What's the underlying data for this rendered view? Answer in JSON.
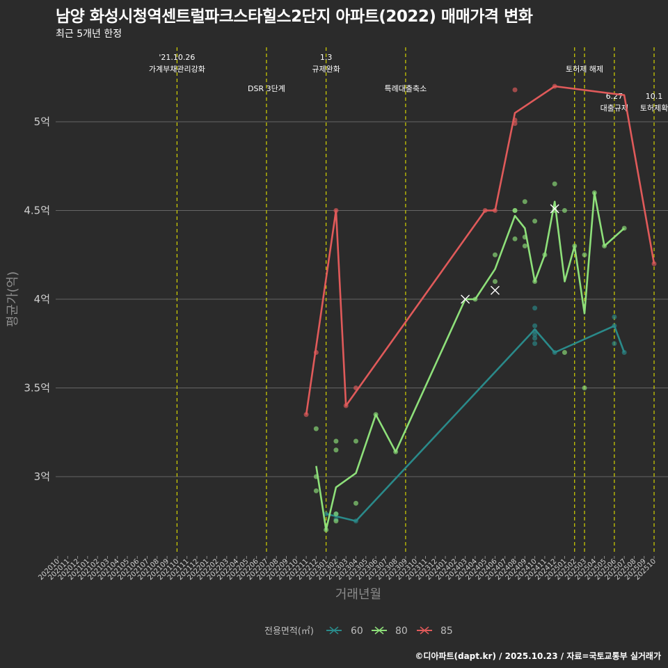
{
  "header": {
    "title": "남양 화성시청역센트럴파크스타힐스2단지 아파트(2022) 매매가격 변화",
    "subtitle": "최근 5개년 한정"
  },
  "footer": {
    "caption": "©디아파트(dapt.kr) / 2025.10.23 / 자료=국토교통부 실거래가"
  },
  "colors": {
    "background": "#2b2b2b",
    "grid": "#666666",
    "event_line": "#d4d400",
    "s60": "#2a8a8a",
    "s80": "#8ee07a",
    "s85": "#e05a5a"
  },
  "chart_data": {
    "type": "line",
    "title": "남양 화성시청역센트럴파크스타힐스2단지 아파트(2022) 매매가격 변화",
    "xlabel": "거래년월",
    "ylabel": "평균가(억)",
    "ylim": [
      2.6,
      5.45
    ],
    "yticks": [
      3,
      3.5,
      4,
      4.5,
      5
    ],
    "ytick_labels": [
      "3억",
      "3.5억",
      "4억",
      "4.5억",
      "5억"
    ],
    "grid": true,
    "x_categories": [
      "202010",
      "202011",
      "202012",
      "202101",
      "202102",
      "202103",
      "202104",
      "202105",
      "202106",
      "202107",
      "202108",
      "202109",
      "202110",
      "202111",
      "202112",
      "202201",
      "202202",
      "202203",
      "202204",
      "202205",
      "202206",
      "202207",
      "202208",
      "202209",
      "202210",
      "202211",
      "202212",
      "202301",
      "202302",
      "202303",
      "202304",
      "202305",
      "202306",
      "202307",
      "202308",
      "202309",
      "202310",
      "202311",
      "202312",
      "202401",
      "202402",
      "202403",
      "202404",
      "202405",
      "202406",
      "202407",
      "202408",
      "202409",
      "202410",
      "202411",
      "202412",
      "202501",
      "202502",
      "202503",
      "202504",
      "202505",
      "202506",
      "202507",
      "202508",
      "202509",
      "202510"
    ],
    "legend": {
      "title": "전용면적(㎡)",
      "placement": "bottom",
      "entries": [
        "60",
        "80",
        "85"
      ]
    },
    "events": [
      {
        "x": "202110",
        "label": "'21.10.26\n가계부채관리강화",
        "row": 0
      },
      {
        "x": "202207",
        "label": "DSR 3단계",
        "row": 2
      },
      {
        "x": "202301",
        "label": "1.3\n규제완화",
        "row": 0
      },
      {
        "x": "202309",
        "label": "특례대출축소",
        "row": 2
      },
      {
        "x": "202502",
        "label": "",
        "row": 0
      },
      {
        "x": "202503",
        "label": "토허제 해제",
        "row": 1
      },
      {
        "x": "202506",
        "label": "6.27\n대출규제",
        "row": 3
      },
      {
        "x": "202510",
        "label": "10.1\n토허제확",
        "row": 3
      }
    ],
    "series": [
      {
        "name": "60",
        "color": "#2a8a8a",
        "line": [
          [
            "202301",
            2.79
          ],
          [
            "202304",
            2.75
          ],
          [
            "202410",
            3.83
          ],
          [
            "202412",
            3.7
          ],
          [
            "202506",
            3.85
          ],
          [
            "202507",
            3.7
          ]
        ],
        "points": [
          [
            "202301",
            2.79
          ],
          [
            "202302",
            2.79
          ],
          [
            "202302",
            2.76
          ],
          [
            "202304",
            2.75
          ],
          [
            "202410",
            3.95
          ],
          [
            "202410",
            3.85
          ],
          [
            "202410",
            3.82
          ],
          [
            "202410",
            3.8
          ],
          [
            "202410",
            3.78
          ],
          [
            "202410",
            3.75
          ],
          [
            "202412",
            3.7
          ],
          [
            "202506",
            3.9
          ],
          [
            "202506",
            3.85
          ],
          [
            "202506",
            3.75
          ],
          [
            "202507",
            3.7
          ]
        ],
        "crosses": []
      },
      {
        "name": "80",
        "color": "#8ee07a",
        "line": [
          [
            "202212",
            3.06
          ],
          [
            "202301",
            2.7
          ],
          [
            "202302",
            2.94
          ],
          [
            "202304",
            3.02
          ],
          [
            "202306",
            3.35
          ],
          [
            "202308",
            3.14
          ],
          [
            "202403",
            4.0
          ],
          [
            "202404",
            4.0
          ],
          [
            "202406",
            4.17
          ],
          [
            "202408",
            4.47
          ],
          [
            "202409",
            4.4
          ],
          [
            "202410",
            4.1
          ],
          [
            "202411",
            4.25
          ],
          [
            "202412",
            4.55
          ],
          [
            "202501",
            4.1
          ],
          [
            "202502",
            4.3
          ],
          [
            "202503",
            3.92
          ],
          [
            "202504",
            4.6
          ],
          [
            "202505",
            4.3
          ],
          [
            "202507",
            4.4
          ]
        ],
        "points": [
          [
            "202212",
            3.27
          ],
          [
            "202212",
            3.0
          ],
          [
            "202212",
            2.92
          ],
          [
            "202301",
            2.7
          ],
          [
            "202302",
            3.2
          ],
          [
            "202302",
            3.15
          ],
          [
            "202302",
            2.79
          ],
          [
            "202302",
            2.75
          ],
          [
            "202304",
            3.2
          ],
          [
            "202304",
            2.85
          ],
          [
            "202306",
            3.35
          ],
          [
            "202308",
            3.14
          ],
          [
            "202404",
            4.0
          ],
          [
            "202406",
            4.25
          ],
          [
            "202406",
            4.1
          ],
          [
            "202408",
            4.5
          ],
          [
            "202408",
            4.5
          ],
          [
            "202408",
            4.34
          ],
          [
            "202409",
            4.55
          ],
          [
            "202409",
            4.35
          ],
          [
            "202409",
            4.3
          ],
          [
            "202410",
            4.44
          ],
          [
            "202410",
            4.1
          ],
          [
            "202411",
            4.25
          ],
          [
            "202412",
            4.65
          ],
          [
            "202412",
            4.5
          ],
          [
            "202501",
            4.5
          ],
          [
            "202501",
            3.7
          ],
          [
            "202502",
            4.3
          ],
          [
            "202503",
            4.25
          ],
          [
            "202503",
            3.5
          ],
          [
            "202504",
            4.6
          ],
          [
            "202505",
            4.3
          ],
          [
            "202507",
            4.4
          ]
        ],
        "crosses": [
          [
            "202403",
            4.0
          ],
          [
            "202406",
            4.05
          ],
          [
            "202412",
            4.51
          ]
        ]
      },
      {
        "name": "85",
        "color": "#e05a5a",
        "line": [
          [
            "202211",
            3.35
          ],
          [
            "202302",
            4.5
          ],
          [
            "202303",
            3.4
          ],
          [
            "202405",
            4.5
          ],
          [
            "202406",
            4.5
          ],
          [
            "202408",
            5.05
          ],
          [
            "202412",
            5.2
          ],
          [
            "202507",
            5.15
          ],
          [
            "202510",
            4.2
          ]
        ],
        "points": [
          [
            "202211",
            3.35
          ],
          [
            "202212",
            3.7
          ],
          [
            "202302",
            4.5
          ],
          [
            "202303",
            3.4
          ],
          [
            "202304",
            3.5
          ],
          [
            "202405",
            4.5
          ],
          [
            "202406",
            4.5
          ],
          [
            "202408",
            5.18
          ],
          [
            "202408",
            5.01
          ],
          [
            "202408",
            4.99
          ],
          [
            "202412",
            5.2
          ],
          [
            "202510",
            4.2
          ]
        ],
        "crosses": []
      }
    ]
  }
}
